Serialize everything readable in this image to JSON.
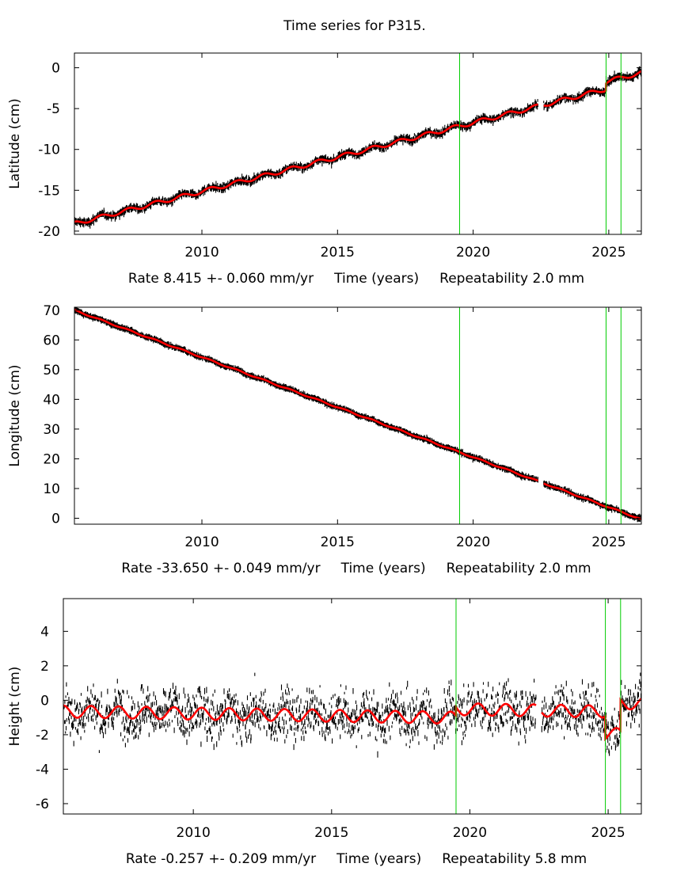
{
  "title": "Time series for P315.",
  "breaks": [
    2019.5,
    2024.9,
    2025.45
  ],
  "colors": {
    "data": "#000000",
    "model": "#ff0000",
    "break": "#00cc00"
  },
  "x_domain": [
    2005.3,
    2026.2
  ],
  "x_ticks": [
    2010,
    2015,
    2020,
    2025
  ],
  "xlabel": "Time (years)",
  "chart_data": [
    {
      "type": "scatter",
      "component": "latitude",
      "ylabel": "Latitude (cm)",
      "ylim": [
        -20.4,
        1.8
      ],
      "y_ticks": [
        0,
        -5,
        -10,
        -15,
        -20
      ],
      "rate_text": "Rate 8.415 +- 0.060 mm/yr",
      "repeat_text": "Repeatability 2.0 mm",
      "rate_cm_per_yr": 0.8415,
      "start_value": -19.1,
      "seasonal_amp": 0.25,
      "noise": 0.2,
      "offsets": [
        {
          "from": 2024.9,
          "delta": 0.9
        }
      ],
      "gaps": [
        [
          2022.4,
          2022.6
        ]
      ]
    },
    {
      "type": "scatter",
      "component": "longitude",
      "ylabel": "Longitude (cm)",
      "ylim": [
        -2,
        71
      ],
      "y_ticks": [
        70,
        60,
        50,
        40,
        30,
        20,
        10,
        0
      ],
      "rate_text": "Rate -33.650 +- 0.049 mm/yr",
      "repeat_text": "Repeatability 2.0 mm",
      "rate_cm_per_yr": -3.365,
      "start_value": 70.0,
      "seasonal_amp": 0.2,
      "noise": 0.25,
      "offsets": [],
      "gaps": [
        [
          2022.4,
          2022.6
        ]
      ]
    },
    {
      "type": "scatter",
      "component": "height",
      "ylabel": "Height (cm)",
      "ylim": [
        -6.6,
        5.9
      ],
      "y_ticks": [
        4,
        2,
        0,
        -2,
        -4,
        -6
      ],
      "rate_text": "Rate -0.257 +- 0.209 mm/yr",
      "repeat_text": "Repeatability 5.8 mm",
      "rate_cm_per_yr": -0.0257,
      "start_value": -0.65,
      "seasonal_amp": 0.35,
      "noise": 0.7,
      "offsets": [
        {
          "from": 2019.5,
          "delta": 0.5
        },
        {
          "from": 2024.9,
          "delta": -1.3
        },
        {
          "from": 2025.45,
          "delta": 1.8
        }
      ],
      "gaps": [
        [
          2022.4,
          2022.6
        ]
      ]
    }
  ]
}
